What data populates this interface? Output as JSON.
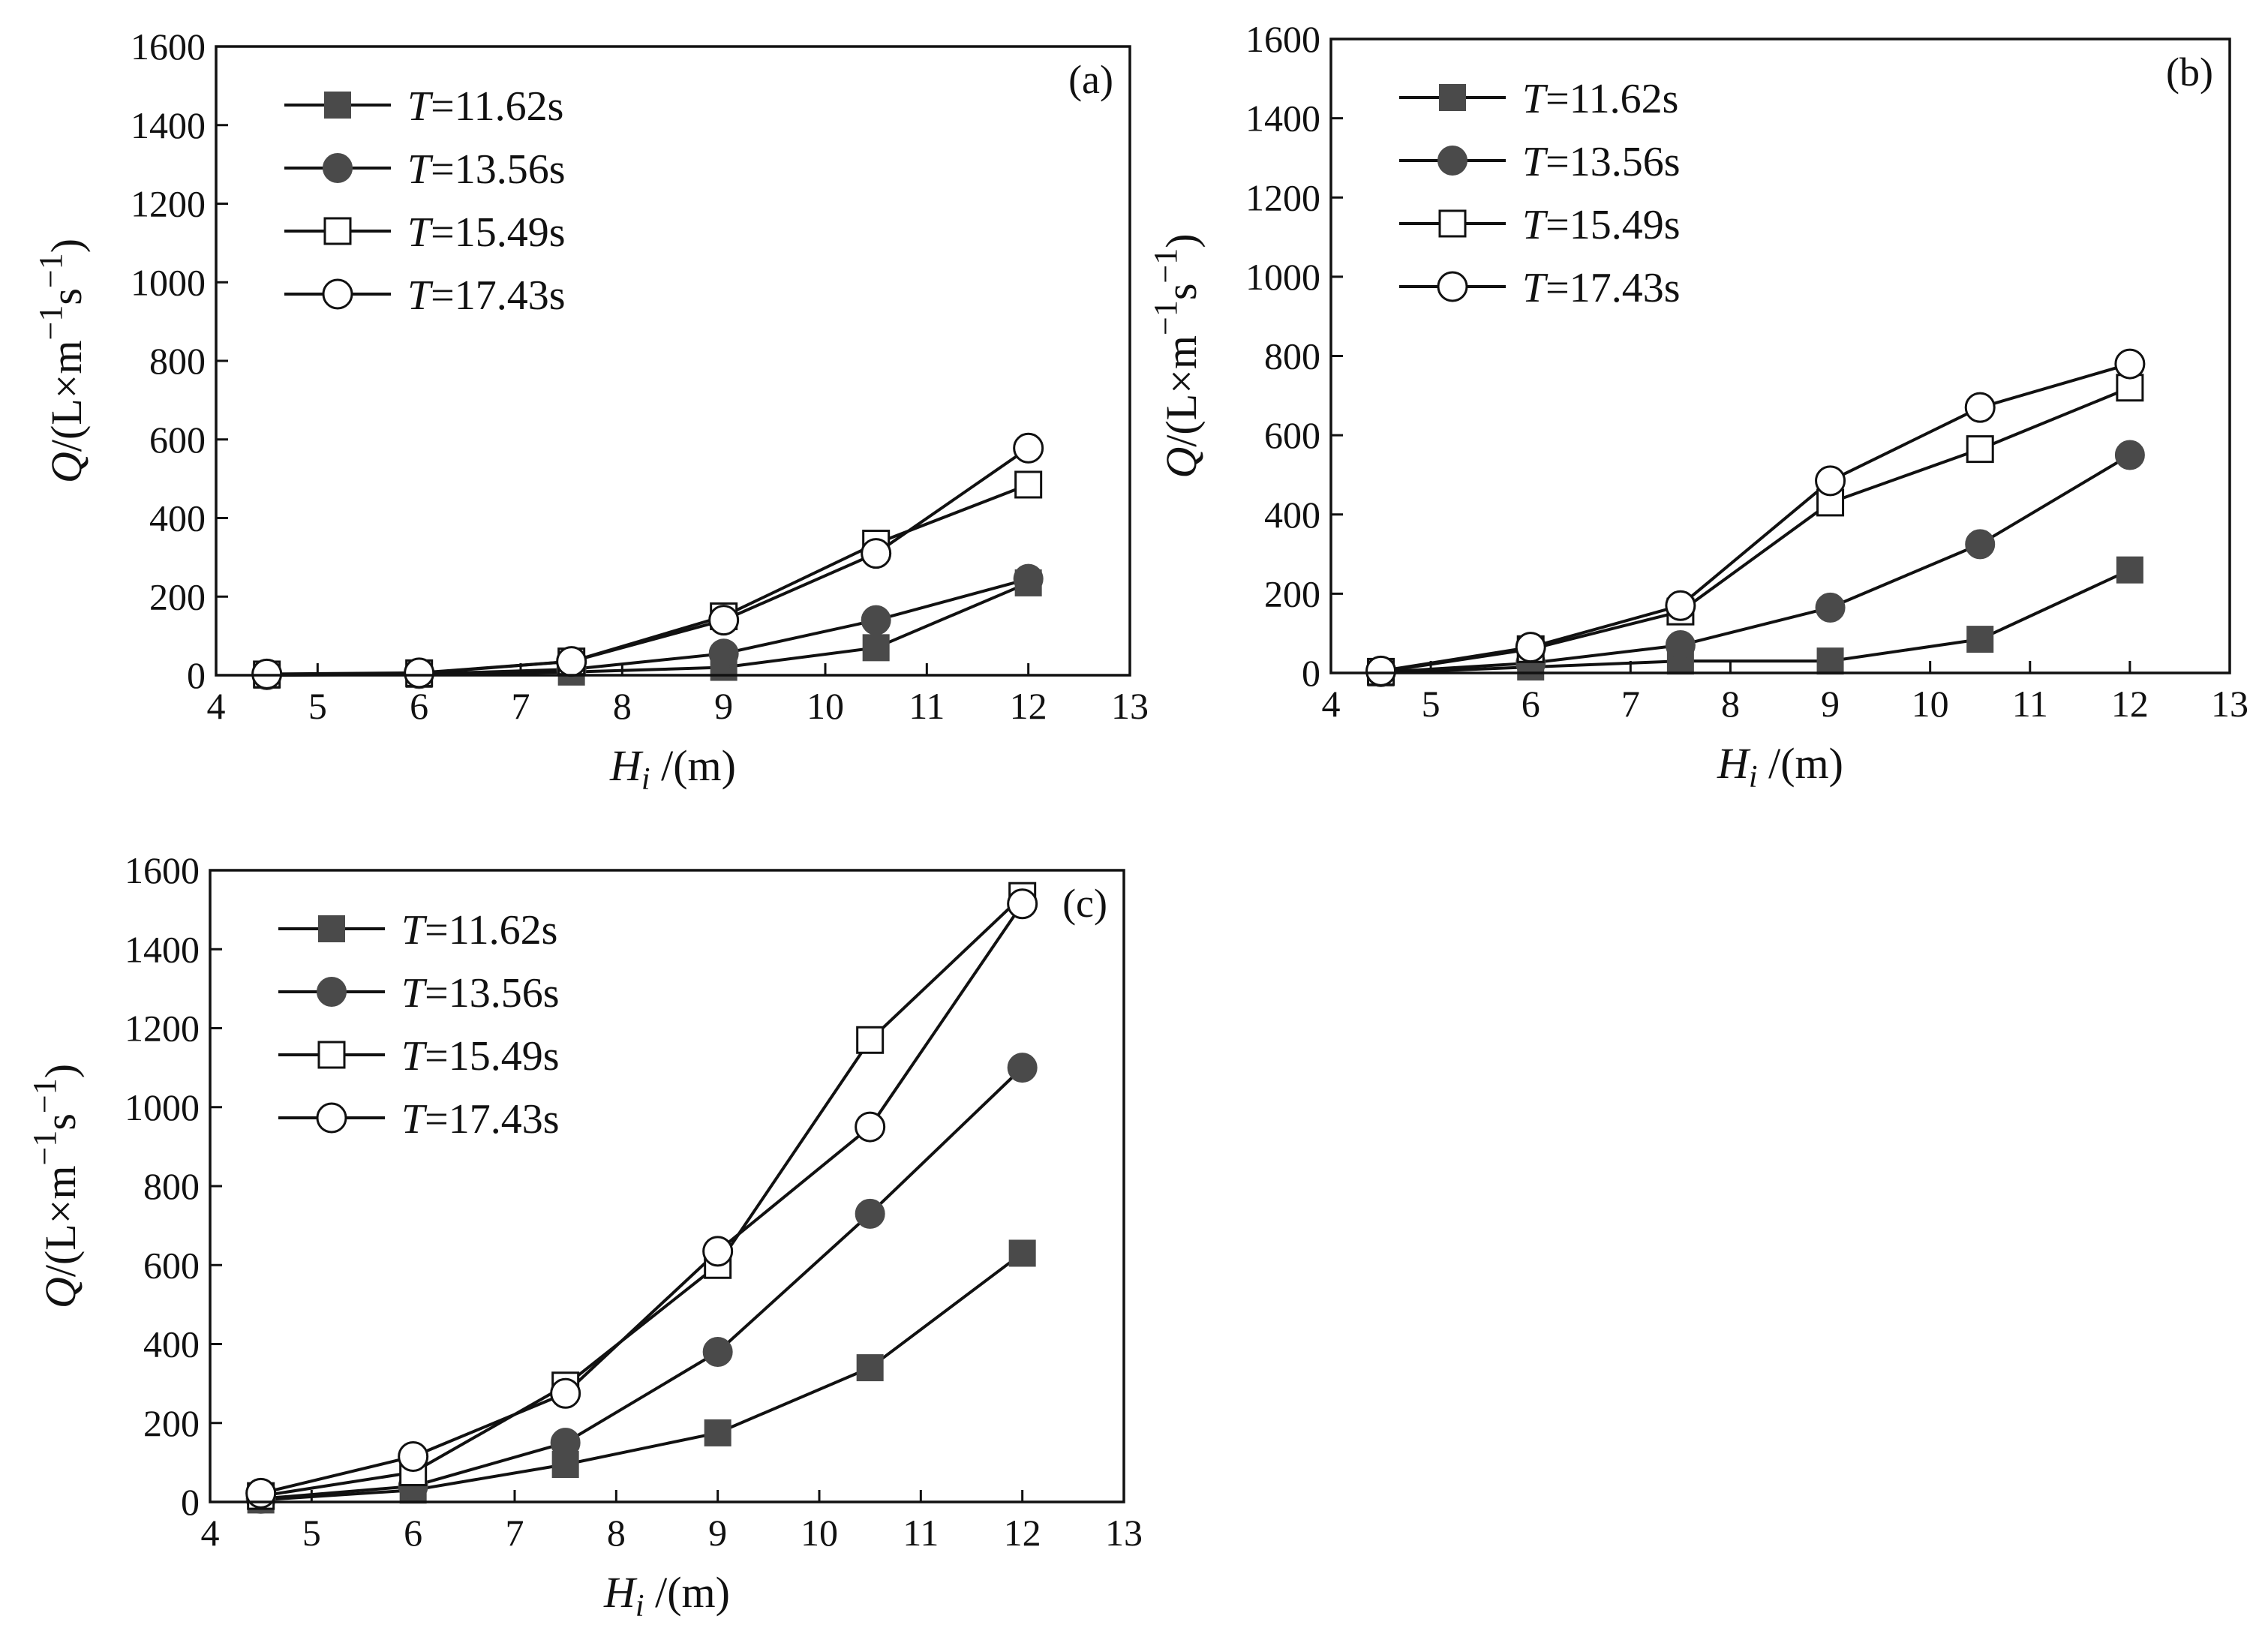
{
  "colors": {
    "filled_marker": "#4a4a4a",
    "line": "#111111",
    "background": "#ffffff"
  },
  "chart_data": [
    {
      "type": "line",
      "panel_label": "(a)",
      "x": [
        4.5,
        6,
        7.5,
        9,
        10.5,
        12
      ],
      "xlim": [
        4,
        13
      ],
      "ylim": [
        0,
        1600
      ],
      "xticks": [
        "4",
        "5",
        "6",
        "7",
        "8",
        "9",
        "10",
        "11",
        "12",
        "13"
      ],
      "yticks": [
        "0",
        "200",
        "400",
        "600",
        "800",
        "1000",
        "1200",
        "1400",
        "1600"
      ],
      "xlabel": {
        "symbol": "H",
        "sub": "i",
        "unit": " /(m)"
      },
      "ylabel": {
        "symbol": "Q",
        "unit_a": "/(L×m",
        "sup_a": "−1",
        "unit_b": "s",
        "sup_b": "−1",
        "close": ")"
      },
      "series": [
        {
          "name": "=11.62s",
          "symbol": "T",
          "marker": "filled-square",
          "values": [
            0,
            2,
            8,
            20,
            70,
            235
          ]
        },
        {
          "name": "=13.56s",
          "symbol": "T",
          "marker": "filled-circle",
          "values": [
            0,
            3,
            15,
            55,
            140,
            245
          ]
        },
        {
          "name": "=15.49s",
          "symbol": "T",
          "marker": "open-square",
          "values": [
            2,
            5,
            35,
            150,
            335,
            485
          ]
        },
        {
          "name": "=17.43s",
          "symbol": "T",
          "marker": "open-circle",
          "values": [
            3,
            6,
            35,
            140,
            310,
            578
          ]
        }
      ]
    },
    {
      "type": "line",
      "panel_label": "(b)",
      "x": [
        4.5,
        6,
        7.5,
        9,
        10.5,
        12
      ],
      "xlim": [
        4,
        13
      ],
      "ylim": [
        0,
        1600
      ],
      "xticks": [
        "4",
        "5",
        "6",
        "7",
        "8",
        "9",
        "10",
        "11",
        "12",
        "13"
      ],
      "yticks": [
        "0",
        "200",
        "400",
        "600",
        "800",
        "1000",
        "1200",
        "1400",
        "1600"
      ],
      "xlabel": {
        "symbol": "H",
        "sub": "i",
        "unit": " /(m)"
      },
      "ylabel": {
        "symbol": "Q",
        "unit_a": "/(L×m",
        "sup_a": "−1",
        "unit_b": "s",
        "sup_b": "−1",
        "close": ")"
      },
      "series": [
        {
          "name": "=11.62s",
          "symbol": "T",
          "marker": "filled-square",
          "values": [
            0,
            15,
            30,
            30,
            85,
            260
          ]
        },
        {
          "name": "=13.56s",
          "symbol": "T",
          "marker": "filled-circle",
          "values": [
            2,
            25,
            70,
            165,
            325,
            550
          ]
        },
        {
          "name": "=15.49s",
          "symbol": "T",
          "marker": "open-square",
          "values": [
            3,
            60,
            155,
            430,
            565,
            720
          ]
        },
        {
          "name": "=17.43s",
          "symbol": "T",
          "marker": "open-circle",
          "values": [
            5,
            65,
            170,
            485,
            670,
            780
          ]
        }
      ]
    },
    {
      "type": "line",
      "panel_label": "(c)",
      "x": [
        4.5,
        6,
        7.5,
        9,
        10.5,
        12
      ],
      "xlim": [
        4,
        13
      ],
      "ylim": [
        0,
        1600
      ],
      "xticks": [
        "4",
        "5",
        "6",
        "7",
        "8",
        "9",
        "10",
        "11",
        "12",
        "13"
      ],
      "yticks": [
        "0",
        "200",
        "400",
        "600",
        "800",
        "1000",
        "1200",
        "1400",
        "1600"
      ],
      "xlabel": {
        "symbol": "H",
        "sub": "i",
        "unit": " /(m)"
      },
      "ylabel": {
        "symbol": "Q",
        "unit_a": "/(L×m",
        "sup_a": "−1",
        "unit_b": "s",
        "sup_b": "−1",
        "close": ")"
      },
      "series": [
        {
          "name": "=11.62s",
          "symbol": "T",
          "marker": "filled-square",
          "values": [
            5,
            30,
            95,
            175,
            340,
            630
          ]
        },
        {
          "name": "=13.56s",
          "symbol": "T",
          "marker": "filled-circle",
          "values": [
            8,
            40,
            150,
            380,
            730,
            1100
          ]
        },
        {
          "name": "=15.49s",
          "symbol": "T",
          "marker": "open-square",
          "values": [
            15,
            75,
            295,
            600,
            1170,
            1535
          ]
        },
        {
          "name": "=17.43s",
          "symbol": "T",
          "marker": "open-circle",
          "values": [
            22,
            115,
            275,
            635,
            950,
            1515
          ]
        }
      ]
    }
  ]
}
